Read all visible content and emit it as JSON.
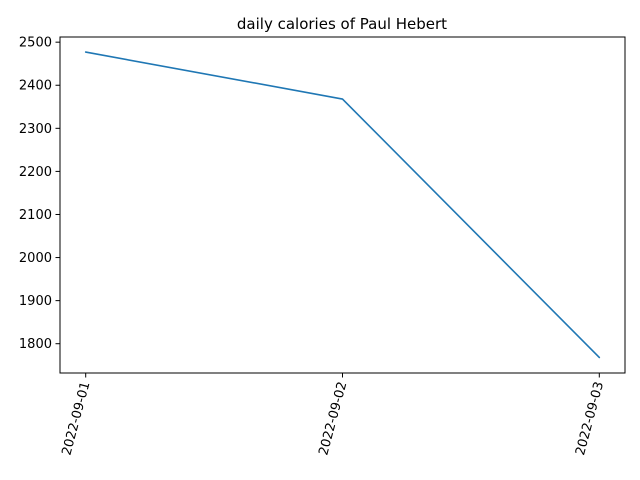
{
  "chart_data": {
    "type": "line",
    "title": "daily calories of Paul Hebert",
    "xlabel": "",
    "ylabel": "",
    "x": [
      "2022-09-01",
      "2022-09-02",
      "2022-09-03"
    ],
    "series": [
      {
        "values": [
          2477,
          2368,
          1768
        ],
        "color": "#1f77b4"
      }
    ],
    "yticks": [
      1800,
      1900,
      2000,
      2100,
      2200,
      2300,
      2400,
      2500
    ],
    "ylim": [
      1732,
      2512
    ],
    "grid": false,
    "legend": "none"
  }
}
